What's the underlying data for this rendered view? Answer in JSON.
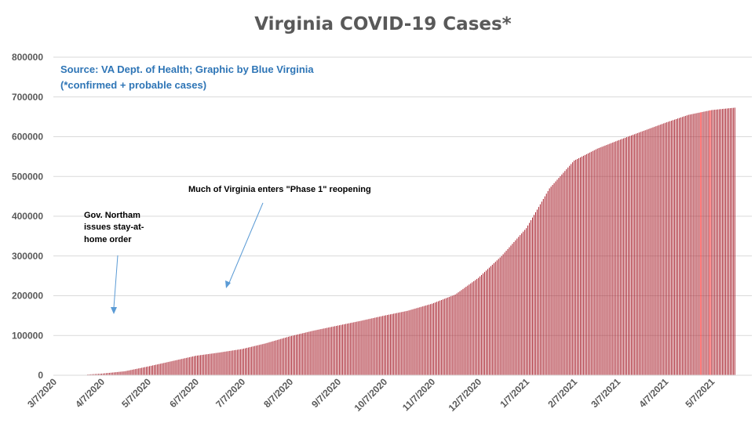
{
  "chart_data": {
    "type": "bar",
    "title": "Virginia COVID-19 Cases*",
    "subtitle": "Source: VA Dept. of Health; Graphic by Blue Virginia",
    "note": "(*confirmed + probable cases)",
    "x_tick_labels": [
      "3/7/2020",
      "4/7/2020",
      "5/7/2020",
      "6/7/2020",
      "7/7/2020",
      "8/7/2020",
      "9/7/2020",
      "10/7/2020",
      "11/7/2020",
      "12/7/2020",
      "1/7/2021",
      "2/7/2021",
      "3/7/2021",
      "4/7/2021",
      "5/7/2021"
    ],
    "y_ticks": [
      0,
      100000,
      200000,
      300000,
      400000,
      500000,
      600000,
      700000,
      800000
    ],
    "ylim": [
      0,
      800000
    ],
    "grid": true,
    "legend": "none",
    "bar_color": "#a61c28",
    "highlight_color": "#ff0000",
    "series": [
      {
        "x": [
          "3/7/2020",
          "3/22/2020",
          "4/7/2020",
          "4/22/2020",
          "5/7/2020",
          "5/22/2020",
          "6/7/2020",
          "6/22/2020",
          "7/7/2020",
          "7/22/2020",
          "8/7/2020",
          "8/22/2020",
          "9/7/2020",
          "9/22/2020",
          "10/7/2020",
          "10/22/2020",
          "11/7/2020",
          "11/22/2020",
          "12/7/2020",
          "12/22/2020",
          "1/7/2021",
          "1/22/2021",
          "2/7/2021",
          "2/22/2021",
          "3/7/2021",
          "3/22/2021",
          "4/7/2021",
          "4/22/2021",
          "5/7/2021",
          "5/22/2021"
        ],
        "values": [
          0,
          200,
          4000,
          10000,
          22000,
          35000,
          49000,
          57000,
          66000,
          80000,
          98000,
          112000,
          125000,
          137000,
          150000,
          162000,
          180000,
          203000,
          245000,
          300000,
          370000,
          470000,
          540000,
          570000,
          590000,
          612000,
          635000,
          655000,
          667000,
          673000
        ]
      }
    ],
    "annotations": [
      {
        "text": [
          "Gov. Northam",
          "issues stay-at-",
          "home order"
        ]
      },
      {
        "text": [
          "Much of Virginia enters \"Phase 1\" reopening"
        ]
      }
    ]
  }
}
